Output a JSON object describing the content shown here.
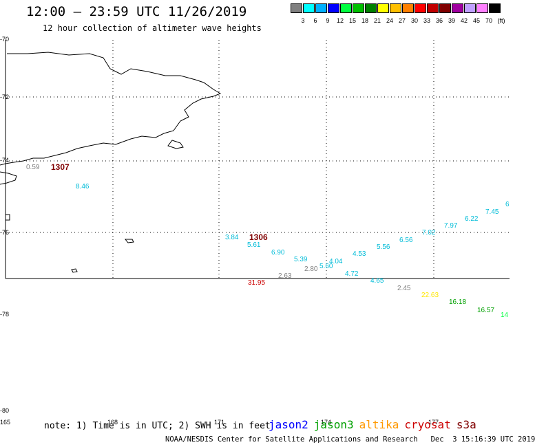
{
  "header": {
    "title": "12:00 — 23:59 UTC 11/26/2019",
    "subtitle": "12 hour collection of altimeter wave heights"
  },
  "scale": {
    "unit": "(ft)",
    "colors": [
      "#808080",
      "#00ffff",
      "#00b0ff",
      "#0000ff",
      "#00ff40",
      "#00c000",
      "#008000",
      "#ffff00",
      "#ffc000",
      "#ff8000",
      "#ff0000",
      "#c00000",
      "#800000",
      "#a000a0",
      "#c0a0ff",
      "#ff80ff",
      "#000000"
    ],
    "labels": [
      "3",
      "6",
      "9",
      "12",
      "15",
      "18",
      "21",
      "24",
      "27",
      "30",
      "33",
      "36",
      "39",
      "42",
      "45",
      "70"
    ]
  },
  "axes": {
    "lat_labels": [
      "-70",
      "-72",
      "-74",
      "-76",
      "-78",
      "-80"
    ],
    "lon_labels": [
      "165",
      "168",
      "171",
      "174",
      "177"
    ]
  },
  "pass_labels": [
    "1307",
    "1306"
  ],
  "observations": [
    {
      "value": "0.59",
      "color": "#808080"
    },
    {
      "value": "8.46",
      "color": "#00bcd8"
    },
    {
      "value": "3.84",
      "color": "#00bcd8"
    },
    {
      "value": "5.61",
      "color": "#00bcd8"
    },
    {
      "value": "6.90",
      "color": "#00bcd8"
    },
    {
      "value": "5.39",
      "color": "#00bcd8"
    },
    {
      "value": "2.80",
      "color": "#808080"
    },
    {
      "value": "5.60",
      "color": "#00bcd8"
    },
    {
      "value": "4.04",
      "color": "#00bcd8"
    },
    {
      "value": "2.63",
      "color": "#808080"
    },
    {
      "value": "4.53",
      "color": "#00bcd8"
    },
    {
      "value": "4.72",
      "color": "#00bcd8"
    },
    {
      "value": "31.95",
      "color": "#cc0000"
    },
    {
      "value": "5.56",
      "color": "#00bcd8"
    },
    {
      "value": "4.65",
      "color": "#00bcd8"
    },
    {
      "value": "6.56",
      "color": "#00bcd8"
    },
    {
      "value": "2.45",
      "color": "#808080"
    },
    {
      "value": "7.02",
      "color": "#00bcd8"
    },
    {
      "value": "7.97",
      "color": "#00bcd8"
    },
    {
      "value": "22.63",
      "color": "#ffe600"
    },
    {
      "value": "6.22",
      "color": "#00bcd8"
    },
    {
      "value": "16.18",
      "color": "#00a000"
    },
    {
      "value": "7.45",
      "color": "#00bcd8"
    },
    {
      "value": "16.57",
      "color": "#00a000"
    },
    {
      "value": "14",
      "color": "#00ff40"
    },
    {
      "value": "6",
      "color": "#00bcd8"
    }
  ],
  "footer": {
    "note": "note: 1) Time is in UTC; 2) SWH is in feet",
    "satellites": [
      {
        "name": "jason2",
        "color": "#0000ff"
      },
      {
        "name": "jason3",
        "color": "#00a000"
      },
      {
        "name": "altika",
        "color": "#ff9900"
      },
      {
        "name": "cryosat",
        "color": "#cc0000"
      },
      {
        "name": "s3a",
        "color": "#800000"
      }
    ],
    "credit": "NOAA/NESDIS Center for Satellite Applications and Research   Dec  3 15:16:39 UTC 2019"
  }
}
